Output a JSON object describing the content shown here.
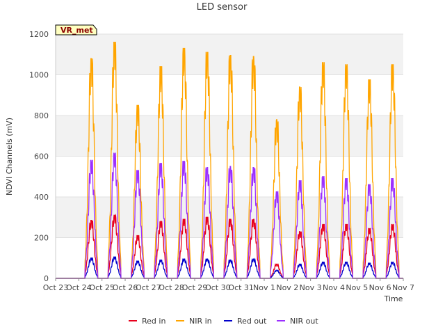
{
  "chart_data": {
    "type": "line",
    "title": "LED sensor",
    "xlabel": "Time",
    "ylabel": "NDVI Channels (mV)",
    "badge": "VR_met",
    "ylim": [
      0,
      1200
    ],
    "yticks": [
      0,
      200,
      400,
      600,
      800,
      1000,
      1200
    ],
    "xlim": [
      "Oct 23",
      "Nov 7"
    ],
    "xticks": [
      "Oct 23",
      "Oct 24",
      "Oct 25",
      "Oct 26",
      "Oct 27",
      "Oct 28",
      "Oct 29",
      "Oct 30",
      "Oct 31",
      "Nov 1",
      "Nov 2",
      "Nov 3",
      "Nov 4",
      "Nov 5",
      "Nov 6",
      "Nov 7"
    ],
    "grid": "horizontal bands",
    "legend": "bottom",
    "series": [
      {
        "name": "Red in",
        "color": "#e8001c",
        "peaks": [
          285,
          310,
          210,
          280,
          290,
          300,
          290,
          290,
          70,
          230,
          265,
          265,
          245,
          265
        ]
      },
      {
        "name": "NIR in",
        "color": "#ffa500",
        "peaks": [
          1080,
          1160,
          850,
          1040,
          1130,
          1110,
          1095,
          1090,
          780,
          940,
          1060,
          1050,
          975,
          1050
        ]
      },
      {
        "name": "Red out",
        "color": "#0000cc",
        "peaks": [
          100,
          105,
          85,
          90,
          95,
          95,
          90,
          95,
          40,
          70,
          80,
          80,
          75,
          80
        ]
      },
      {
        "name": "NIR out",
        "color": "#9b30ff",
        "peaks": [
          580,
          615,
          530,
          565,
          575,
          545,
          550,
          545,
          425,
          480,
          500,
          490,
          460,
          490
        ]
      }
    ],
    "peak_days": [
      "Oct 24",
      "Oct 25",
      "Oct 26",
      "Oct 27",
      "Oct 28",
      "Oct 29",
      "Oct 30",
      "Oct 31",
      "Nov 1",
      "Nov 2",
      "Nov 3",
      "Nov 4",
      "Nov 5",
      "Nov 6"
    ]
  }
}
